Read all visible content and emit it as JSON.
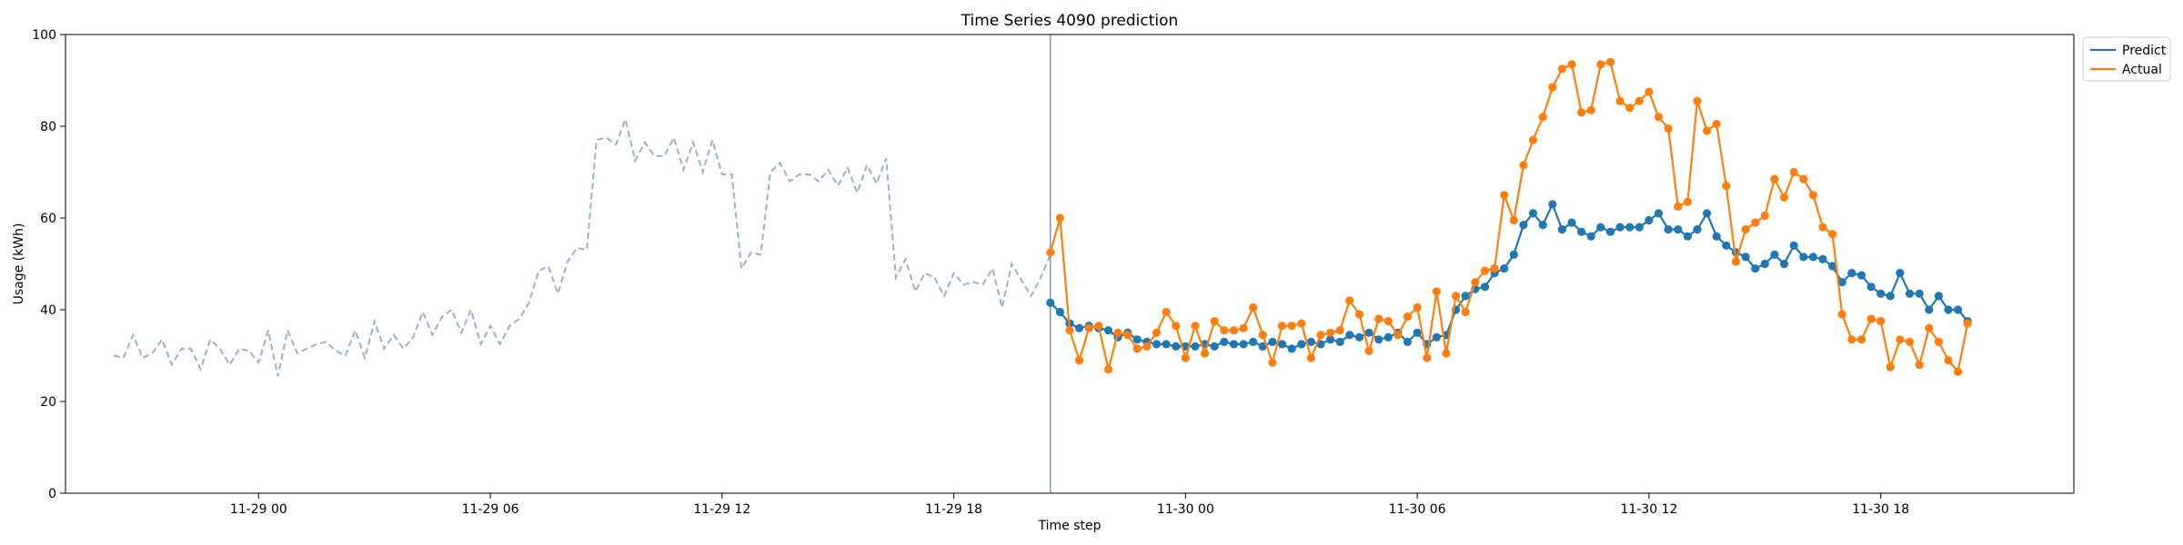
{
  "chart_data": {
    "type": "line",
    "title": "Time Series 4090 prediction",
    "xlabel": "Time step",
    "ylabel": "Usage (kWh)",
    "ylim": [
      0,
      100
    ],
    "yticks": [
      0,
      20,
      40,
      60,
      80,
      100
    ],
    "xlim": [
      "2024-11-28 19:00",
      "2024-11-30 23:00"
    ],
    "xticks": [
      {
        "t": "2024-11-29 00:00",
        "label": "11-29 00"
      },
      {
        "t": "2024-11-29 06:00",
        "label": "11-29 06"
      },
      {
        "t": "2024-11-29 12:00",
        "label": "11-29 12"
      },
      {
        "t": "2024-11-29 18:00",
        "label": "11-29 18"
      },
      {
        "t": "2024-11-30 00:00",
        "label": "11-30 00"
      },
      {
        "t": "2024-11-30 06:00",
        "label": "11-30 06"
      },
      {
        "t": "2024-11-30 12:00",
        "label": "11-30 12"
      },
      {
        "t": "2024-11-30 18:00",
        "label": "11-30 18"
      }
    ],
    "forecast_start": "2024-11-29 20:30",
    "grid": false,
    "legend_position": "top-right",
    "history": {
      "start": "2024-11-28 20:15",
      "step_minutes": 15,
      "color": "#9ab0d0",
      "style": "dashed",
      "values": [
        30,
        29.5,
        34.5,
        29.5,
        30.5,
        33.5,
        28,
        31.5,
        31.5,
        27,
        33.5,
        31.5,
        28,
        31.5,
        31,
        28.5,
        35.5,
        25.5,
        35.5,
        30.5,
        31.5,
        32.5,
        33,
        31,
        30,
        35.5,
        29.5,
        37.5,
        31.5,
        34.5,
        31.5,
        34,
        39.5,
        34.5,
        38.5,
        40,
        35,
        40,
        32.5,
        36.5,
        32.5,
        36.5,
        38,
        41.5,
        48.5,
        49.5,
        43.5,
        50.5,
        53.5,
        53,
        77,
        77.5,
        76,
        81.5,
        72.5,
        76.5,
        73.5,
        73.5,
        77.5,
        70.5,
        76.5,
        70,
        77,
        69.5,
        69.5,
        49,
        52.5,
        52,
        70,
        72,
        68,
        69.5,
        69.5,
        68,
        70.5,
        67,
        71,
        65.5,
        71.5,
        67.5,
        73,
        47,
        51,
        44,
        48,
        47,
        43,
        48,
        45.5,
        46,
        45.5,
        49,
        40.5,
        50,
        46.5,
        43,
        47,
        52
      ]
    },
    "forecast_x": {
      "start": "2024-11-29 20:30",
      "step_minutes": 15
    },
    "series": [
      {
        "name": "Predict",
        "color": "#1f77b4",
        "values": [
          41.5,
          39.5,
          37,
          36,
          36.5,
          36,
          35.5,
          34,
          35,
          33.5,
          33,
          32.5,
          32.5,
          32,
          32,
          32,
          32.5,
          32,
          33,
          32.5,
          32.5,
          33,
          32,
          33,
          32.5,
          31.5,
          32.5,
          33,
          32.5,
          33.5,
          33,
          34.5,
          34,
          35,
          33.5,
          34,
          35,
          33,
          35,
          32.5,
          34,
          34.5,
          40,
          43,
          44.5,
          45,
          48,
          49,
          52,
          58.5,
          61,
          58.5,
          63,
          57.5,
          59,
          57,
          56,
          58,
          57,
          58,
          58,
          58,
          59.5,
          61,
          57.5,
          57.5,
          56,
          57.5,
          61,
          56,
          54,
          52.5,
          51.5,
          49,
          50,
          52,
          50,
          54,
          51.5,
          51.5,
          51,
          49.5,
          46,
          48,
          47.5,
          45,
          43.5,
          43,
          48,
          43.5,
          43.5,
          40,
          43,
          40,
          40,
          37.5
        ]
      },
      {
        "name": "Actual",
        "color": "#ff7f0e",
        "values": [
          52.5,
          60,
          35.5,
          29,
          36,
          36.5,
          27,
          35,
          34.5,
          31.5,
          32,
          35,
          39.5,
          36.5,
          29.5,
          36.5,
          30.5,
          37.5,
          35.5,
          35.5,
          36,
          40.5,
          34.5,
          28.5,
          36.5,
          36.5,
          37,
          29.5,
          34.5,
          35,
          35.5,
          42,
          39,
          31,
          38,
          37.5,
          34.5,
          38.5,
          40.5,
          29.5,
          44,
          30.5,
          43,
          39.5,
          46,
          48.5,
          49,
          65,
          59.5,
          71.5,
          77,
          82,
          88.5,
          92.5,
          93.5,
          83,
          83.5,
          93.5,
          94,
          85.5,
          84,
          85.5,
          87.5,
          82,
          79.5,
          62.5,
          63.5,
          85.5,
          79,
          80.5,
          67,
          50.5,
          57.5,
          59,
          60.5,
          68.5,
          64.5,
          70,
          68.5,
          65,
          58,
          56.5,
          39,
          33.5,
          33.5,
          38,
          37.5,
          27.5,
          33.5,
          33,
          28,
          36,
          33,
          29,
          26.5,
          37
        ]
      }
    ]
  }
}
